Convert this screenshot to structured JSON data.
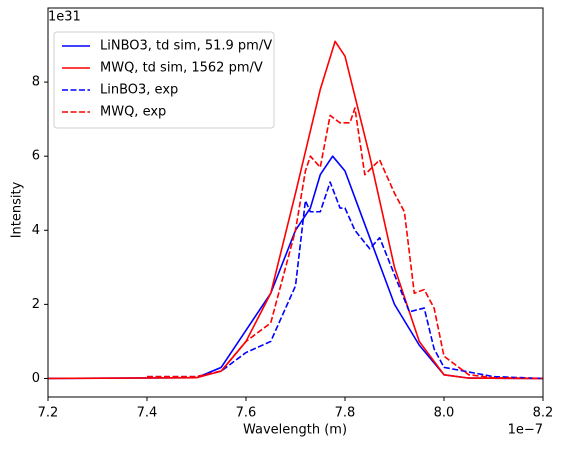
{
  "chart_data": {
    "type": "line",
    "x_label": "Wavelength (m)",
    "y_label": "Intensity",
    "x_offset_label": "1e−7",
    "y_offset_label": "1e31",
    "xlim": [
      7.2,
      8.2
    ],
    "xticks": [
      7.2,
      7.4,
      7.6,
      7.8,
      8.0,
      8.2
    ],
    "ylim": [
      -0.5,
      10.0
    ],
    "yticks": [
      0,
      2,
      4,
      6,
      8
    ],
    "legend": "upper left",
    "grid": false,
    "series": [
      {
        "name": "LiNBO3, td sim, 51.9 pm/V",
        "color": "#0000ff",
        "dash": false,
        "x": [
          7.2,
          7.5,
          7.55,
          7.6,
          7.65,
          7.7,
          7.73,
          7.75,
          7.775,
          7.8,
          7.85,
          7.9,
          7.95,
          8.0,
          8.05,
          8.2
        ],
        "values": [
          0,
          0.02,
          0.3,
          1.3,
          2.3,
          4.0,
          4.6,
          5.5,
          6.0,
          5.6,
          3.8,
          2.0,
          0.9,
          0.1,
          0.01,
          0
        ]
      },
      {
        "name": "MWQ, td sim, 1562 pm/V",
        "color": "#ff0000",
        "dash": false,
        "x": [
          7.2,
          7.5,
          7.55,
          7.6,
          7.65,
          7.7,
          7.75,
          7.78,
          7.8,
          7.85,
          7.9,
          7.95,
          8.0,
          8.05,
          8.2
        ],
        "values": [
          0,
          0.02,
          0.2,
          1.0,
          2.3,
          5.0,
          7.8,
          9.1,
          8.7,
          6.0,
          3.0,
          1.0,
          0.1,
          0.01,
          0
        ]
      },
      {
        "name": "LinBO3, exp",
        "color": "#0000ff",
        "dash": true,
        "x": [
          7.4,
          7.5,
          7.55,
          7.6,
          7.65,
          7.7,
          7.72,
          7.73,
          7.75,
          7.77,
          7.79,
          7.8,
          7.82,
          7.85,
          7.87,
          7.9,
          7.93,
          7.96,
          7.98,
          8.0,
          8.1,
          8.2
        ],
        "values": [
          0.05,
          0.05,
          0.2,
          0.7,
          1.0,
          2.5,
          4.8,
          4.5,
          4.5,
          5.3,
          4.6,
          4.6,
          4.0,
          3.5,
          3.8,
          2.8,
          1.8,
          1.9,
          0.8,
          0.3,
          0.05,
          0
        ]
      },
      {
        "name": "MWQ, exp",
        "color": "#ff0000",
        "dash": true,
        "x": [
          7.4,
          7.5,
          7.55,
          7.6,
          7.65,
          7.7,
          7.72,
          7.73,
          7.75,
          7.77,
          7.79,
          7.81,
          7.82,
          7.84,
          7.87,
          7.9,
          7.92,
          7.94,
          7.96,
          7.98,
          8.0,
          8.05,
          8.1,
          8.2
        ],
        "values": [
          0.05,
          0.05,
          0.2,
          1.0,
          1.5,
          4.0,
          5.6,
          6.0,
          5.7,
          7.1,
          6.9,
          6.9,
          7.3,
          5.5,
          5.9,
          5.0,
          4.5,
          2.3,
          2.4,
          1.9,
          0.6,
          0.1,
          0.02,
          0
        ]
      }
    ]
  }
}
